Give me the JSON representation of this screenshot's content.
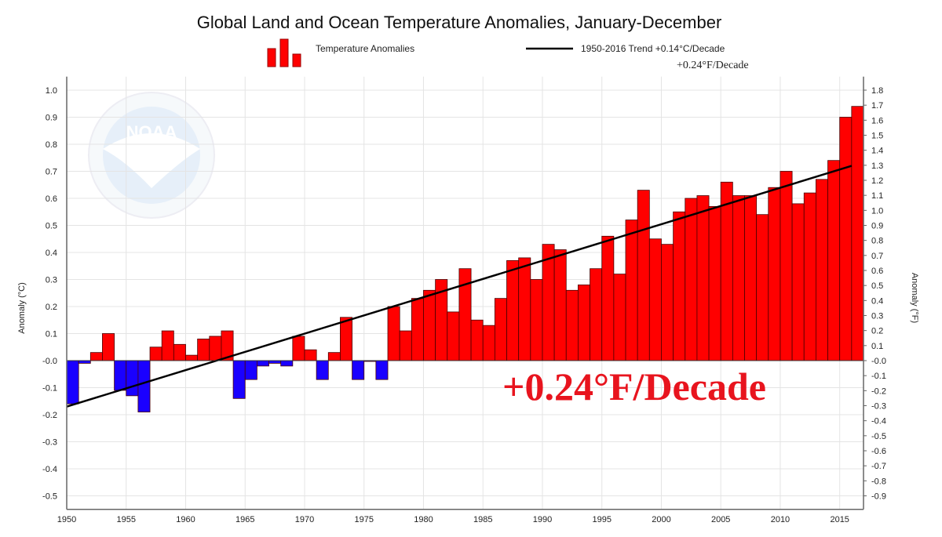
{
  "chart_data": {
    "type": "bar",
    "title": "Global Land and Ocean Temperature Anomalies, January-December",
    "ylabel": "Anomaly (°C)",
    "ylabel_right": "Anomaly (°F)",
    "xlabel": "",
    "ylim": [
      -0.55,
      1.05
    ],
    "xlim": [
      1950,
      2017
    ],
    "grid": true,
    "legend_position": "top",
    "legend": {
      "bars": "Temperature Anomalies",
      "trend": "1950-2016 Trend +0.14°C/Decade",
      "trend_f": "+0.24°F/Decade"
    },
    "annotation": "+0.24°F/Decade",
    "watermark": "NOAA",
    "colors": {
      "positive": "#ff0000",
      "negative": "#1a00ff",
      "trend": "#000000",
      "annotation": "#e8141e"
    },
    "x_ticks": [
      "1950",
      "1955",
      "1960",
      "1965",
      "1970",
      "1975",
      "1980",
      "1985",
      "1990",
      "1995",
      "2000",
      "2005",
      "2010",
      "2015"
    ],
    "y_ticks_left": [
      "1.0",
      "0.9",
      "0.8",
      "0.7",
      "0.6",
      "0.5",
      "0.4",
      "0.3",
      "0.2",
      "0.1",
      "-0.0",
      "-0.1",
      "-0.2",
      "-0.3",
      "-0.4",
      "-0.5"
    ],
    "y_ticks_right": [
      "1.8",
      "1.7",
      "1.6",
      "1.5",
      "1.4",
      "1.3",
      "1.2",
      "1.1",
      "1.0",
      "0.9",
      "0.8",
      "0.7",
      "0.6",
      "0.5",
      "0.4",
      "0.3",
      "0.2",
      "0.1",
      "-0.0",
      "-0.1",
      "-0.2",
      "-0.3",
      "-0.4",
      "-0.5",
      "-0.6",
      "-0.7",
      "-0.8",
      "-0.9"
    ],
    "years": [
      1950,
      1951,
      1952,
      1953,
      1954,
      1955,
      1956,
      1957,
      1958,
      1959,
      1960,
      1961,
      1962,
      1963,
      1964,
      1965,
      1966,
      1967,
      1968,
      1969,
      1970,
      1971,
      1972,
      1973,
      1974,
      1975,
      1976,
      1977,
      1978,
      1979,
      1980,
      1981,
      1982,
      1983,
      1984,
      1985,
      1986,
      1987,
      1988,
      1989,
      1990,
      1991,
      1992,
      1993,
      1994,
      1995,
      1996,
      1997,
      1998,
      1999,
      2000,
      2001,
      2002,
      2003,
      2004,
      2005,
      2006,
      2007,
      2008,
      2009,
      2010,
      2011,
      2012,
      2013,
      2014,
      2015,
      2016
    ],
    "values": [
      -0.16,
      -0.01,
      0.03,
      0.1,
      -0.11,
      -0.13,
      -0.19,
      0.05,
      0.11,
      0.06,
      0.02,
      0.08,
      0.09,
      0.11,
      -0.14,
      -0.07,
      -0.02,
      -0.01,
      -0.02,
      0.09,
      0.04,
      -0.07,
      0.03,
      0.16,
      -0.07,
      -0.003,
      -0.07,
      0.2,
      0.11,
      0.23,
      0.26,
      0.3,
      0.18,
      0.34,
      0.15,
      0.13,
      0.23,
      0.37,
      0.38,
      0.3,
      0.43,
      0.41,
      0.26,
      0.28,
      0.34,
      0.46,
      0.32,
      0.52,
      0.63,
      0.45,
      0.43,
      0.55,
      0.6,
      0.61,
      0.57,
      0.66,
      0.61,
      0.61,
      0.54,
      0.64,
      0.7,
      0.58,
      0.62,
      0.67,
      0.74,
      0.9,
      0.94
    ],
    "trend": {
      "start": [
        1950,
        -0.17
      ],
      "end": [
        2016,
        0.72
      ]
    }
  }
}
